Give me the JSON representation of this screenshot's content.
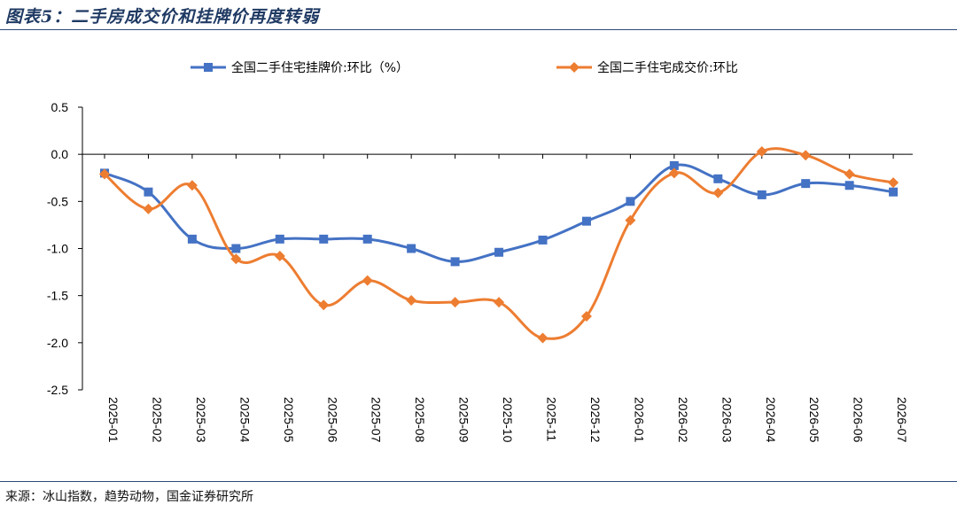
{
  "title": "图表5：二手房成交价和挂牌价再度转弱",
  "source": "来源：冰山指数，趋势动物，国金证券研究所",
  "chart_data": {
    "type": "line",
    "categories": [
      "2025-01",
      "2025-02",
      "2025-03",
      "2025-04",
      "2025-05",
      "2025-06",
      "2025-07",
      "2025-08",
      "2025-09",
      "2025-10",
      "2025-11",
      "2025-12",
      "2026-01",
      "2026-02",
      "2026-03",
      "2026-04",
      "2026-05",
      "2026-06",
      "2026-07"
    ],
    "series": [
      {
        "name": "全国二手住宅挂牌价:环比（%）",
        "color": "#4472c4",
        "marker": "square",
        "values": [
          -0.2,
          -0.4,
          -0.9,
          -1.0,
          -0.9,
          -0.9,
          -0.9,
          -1.0,
          -1.14,
          -1.04,
          -0.91,
          -0.71,
          -0.5,
          -0.12,
          -0.26,
          -0.43,
          -0.31,
          -0.33,
          -0.4
        ]
      },
      {
        "name": "全国二手住宅成交价:环比",
        "color": "#ed7d31",
        "marker": "diamond",
        "values": [
          -0.21,
          -0.58,
          -0.33,
          -1.11,
          -1.08,
          -1.6,
          -1.34,
          -1.55,
          -1.57,
          -1.57,
          -1.95,
          -1.72,
          -0.7,
          -0.2,
          -0.41,
          0.03,
          -0.01,
          -0.21,
          -0.3
        ]
      }
    ],
    "yticks": [
      "0.5",
      "0.0",
      "-0.5",
      "-1.0",
      "-1.5",
      "-2.0",
      "-2.5"
    ],
    "ylim": [
      -2.5,
      0.5
    ],
    "legend_position": "top"
  }
}
